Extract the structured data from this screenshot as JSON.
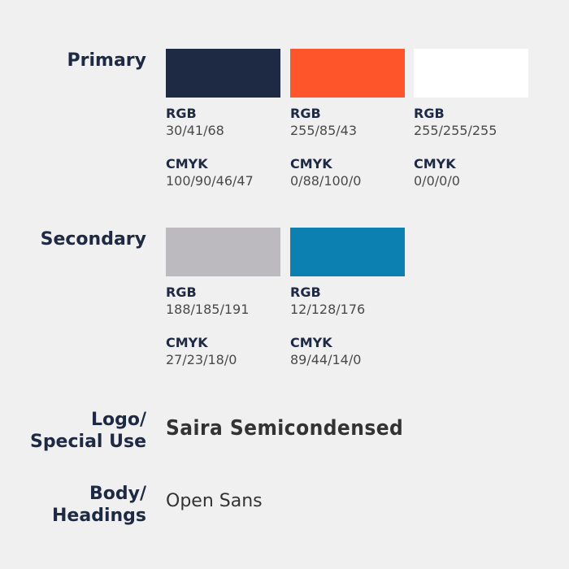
{
  "sections": {
    "primary_label": "Primary",
    "secondary_label": "Secondary",
    "logo_label_line1": "Logo/",
    "logo_label_line2": "Special Use",
    "body_label_line1": "Body/",
    "body_label_line2": "Headings"
  },
  "primary": [
    {
      "hex": "#1e2944",
      "rgb_label": "RGB",
      "rgb": "30/41/68",
      "cmyk_label": "CMYK",
      "cmyk": "100/90/46/47"
    },
    {
      "hex": "#ff552b",
      "rgb_label": "RGB",
      "rgb": "255/85/43",
      "cmyk_label": "CMYK",
      "cmyk": "0/88/100/0"
    },
    {
      "hex": "#ffffff",
      "rgb_label": "RGB",
      "rgb": "255/255/255",
      "cmyk_label": "CMYK",
      "cmyk": "0/0/0/0"
    }
  ],
  "secondary": [
    {
      "hex": "#bcb9bf",
      "rgb_label": "RGB",
      "rgb": "188/185/191",
      "cmyk_label": "CMYK",
      "cmyk": "27/23/18/0"
    },
    {
      "hex": "#0c80b0",
      "rgb_label": "RGB",
      "rgb": "12/128/176",
      "cmyk_label": "CMYK",
      "cmyk": "89/44/14/0"
    }
  ],
  "fonts": {
    "logo_font": "Saira Semicondensed",
    "body_font": "Open Sans"
  }
}
